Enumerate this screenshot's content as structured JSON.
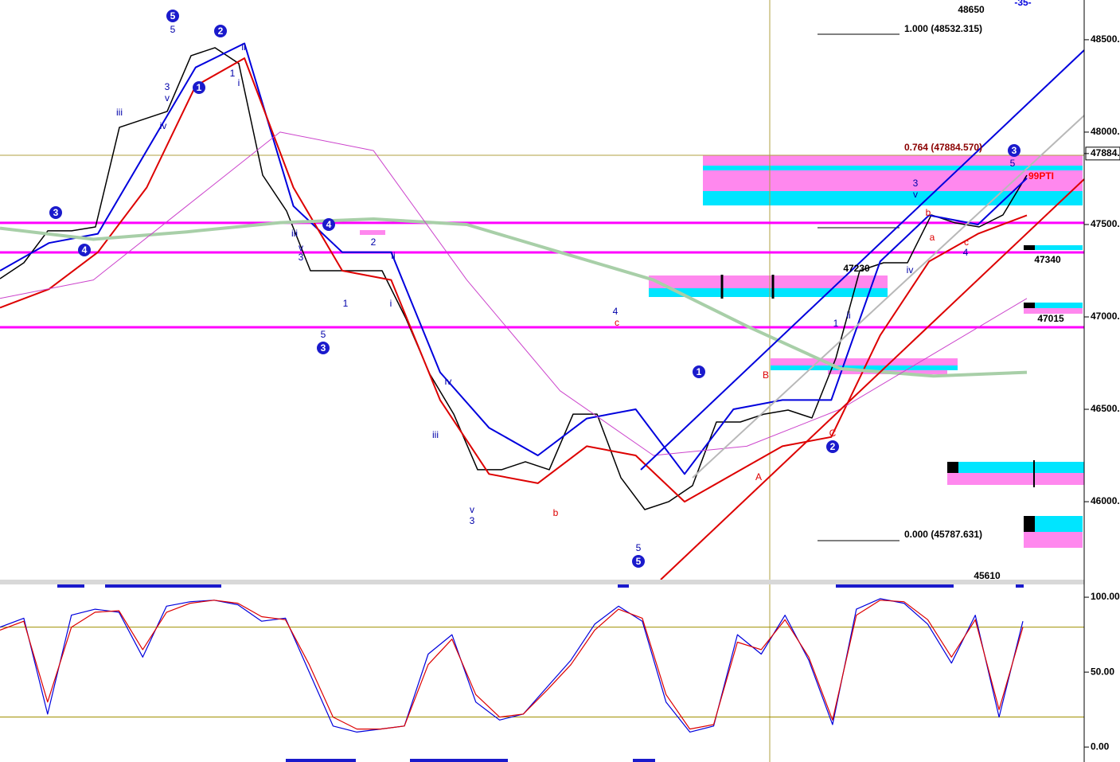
{
  "chart_data": [
    {
      "type": "line",
      "ylim": [
        45578,
        48715
      ],
      "yticks": [
        {
          "value": 48500,
          "label": "48500."
        },
        {
          "value": 48000,
          "label": "48000."
        },
        {
          "value": 47884,
          "label": "47884."
        },
        {
          "value": 47500,
          "label": "47500."
        },
        {
          "value": 47000,
          "label": "47000."
        },
        {
          "value": 46500,
          "label": "46500."
        },
        {
          "value": 46000,
          "label": "46000."
        }
      ],
      "series": [
        {
          "name": "Price",
          "color": "#000000",
          "values": [
            47207,
            47293,
            47466,
            47466,
            47487,
            48026,
            48069,
            48112,
            48414,
            48457,
            48371,
            47767,
            47573,
            47250,
            47250,
            47250,
            47250,
            46991,
            46690,
            46474,
            46173,
            46173,
            46216,
            46173,
            46474,
            46474,
            46130,
            45957,
            46000,
            46087,
            46431,
            46431,
            46474,
            46496,
            46453,
            46776,
            47250,
            47293,
            47293,
            47552,
            47509,
            47487,
            47552,
            47767
          ]
        },
        {
          "name": "Upper band",
          "color": "#0000dd",
          "values": [
            47250,
            47400,
            47450,
            47900,
            48350,
            48480,
            47600,
            47350,
            47350,
            46700,
            46400,
            46250,
            46450,
            46500,
            46150,
            46500,
            46550,
            46550,
            47300,
            47550,
            47500,
            47750
          ]
        },
        {
          "name": "Lower band",
          "color": "#dd0000",
          "values": [
            47050,
            47150,
            47350,
            47700,
            48250,
            48400,
            47700,
            47250,
            47200,
            46550,
            46150,
            46100,
            46300,
            46250,
            46000,
            46150,
            46300,
            46350,
            46900,
            47300,
            47450,
            47550
          ]
        },
        {
          "name": "Slow average",
          "color": "#a8cfa8",
          "values": [
            47480,
            47420,
            47460,
            47510,
            47530,
            47500,
            47350,
            47200,
            46950,
            46720,
            46680,
            46700
          ]
        },
        {
          "name": "Fast average",
          "color": "#cc44cc",
          "values": [
            47100,
            47200,
            47600,
            48000,
            47900,
            47200,
            46600,
            46250,
            46300,
            46500,
            46800,
            47100
          ]
        }
      ],
      "hlines": [
        47509,
        47349,
        46944
      ],
      "hline_color": "#ff00ff",
      "annotations": [
        {
          "text": "48650",
          "color": "#000000"
        },
        {
          "text": "1.000 (48532.315)",
          "color": "#000000"
        },
        {
          "text": "0.764 (47884.570)",
          "color": "#8b0000"
        },
        {
          "text": "0.000 (45787.631)",
          "color": "#000000"
        },
        {
          "text": "47340",
          "color": "#000000"
        },
        {
          "text": "47015",
          "color": "#000000"
        },
        {
          "text": "45610",
          "color": "#000000"
        },
        {
          "text": "47230",
          "color": "#000000"
        },
        {
          "text": "99PTI",
          "color": "#ff0000"
        },
        {
          "text": "-35-",
          "color": "#0000dd"
        }
      ],
      "wave_circles": [
        "5",
        "2",
        "1",
        "3",
        "4",
        "4",
        "3",
        "5",
        "1",
        "2",
        "3"
      ],
      "wave_labels": [
        {
          "text": "5",
          "color": "#0000aa"
        },
        {
          "text": "3",
          "color": "#0000aa"
        },
        {
          "text": "v",
          "color": "#0000aa"
        },
        {
          "text": "iii",
          "color": "#0000aa"
        },
        {
          "text": "iv",
          "color": "#0000aa"
        },
        {
          "text": "1",
          "color": "#0000aa"
        },
        {
          "text": "i",
          "color": "#0000aa"
        },
        {
          "text": "ii",
          "color": "#0000aa"
        },
        {
          "text": "iii",
          "color": "#0000aa"
        },
        {
          "text": "v",
          "color": "#0000aa"
        },
        {
          "text": "3",
          "color": "#0000aa"
        },
        {
          "text": "5",
          "color": "#0000aa"
        },
        {
          "text": "1",
          "color": "#0000aa"
        },
        {
          "text": "2",
          "color": "#0000aa"
        },
        {
          "text": "i",
          "color": "#0000aa"
        },
        {
          "text": "ii",
          "color": "#0000aa"
        },
        {
          "text": "iii",
          "color": "#0000aa"
        },
        {
          "text": "iv",
          "color": "#0000aa"
        },
        {
          "text": "v",
          "color": "#0000aa"
        },
        {
          "text": "3",
          "color": "#0000aa"
        },
        {
          "text": "4",
          "color": "#0000aa"
        },
        {
          "text": "5",
          "color": "#0000aa"
        },
        {
          "text": "ii",
          "color": "#0000aa"
        },
        {
          "text": "1",
          "color": "#0000aa"
        },
        {
          "text": "3",
          "color": "#0000aa"
        },
        {
          "text": "v",
          "color": "#0000aa"
        },
        {
          "text": "iv",
          "color": "#0000aa"
        },
        {
          "text": "4",
          "color": "#0000aa"
        },
        {
          "text": "5",
          "color": "#0000aa"
        },
        {
          "text": "c",
          "color": "#dd0000"
        },
        {
          "text": "b",
          "color": "#dd0000"
        },
        {
          "text": "A",
          "color": "#dd0000"
        },
        {
          "text": "B",
          "color": "#dd0000"
        },
        {
          "text": "C",
          "color": "#dd0000"
        },
        {
          "text": "a",
          "color": "#dd0000"
        },
        {
          "text": "b",
          "color": "#dd0000"
        },
        {
          "text": "c",
          "color": "#dd0000"
        }
      ]
    },
    {
      "type": "line",
      "ylim": [
        -10,
        108
      ],
      "yticks": [
        {
          "value": 100,
          "label": "100.00"
        },
        {
          "value": 50,
          "label": "50.00"
        },
        {
          "value": 0,
          "label": "0.00"
        }
      ],
      "series": [
        {
          "name": "%K",
          "color": "#0000dd",
          "values": [
            80,
            86,
            22,
            88,
            92,
            90,
            60,
            94,
            97,
            98,
            95,
            84,
            86,
            50,
            14,
            10,
            12,
            14,
            62,
            75,
            30,
            18,
            22,
            40,
            58,
            82,
            94,
            84,
            30,
            10,
            14,
            75,
            62,
            88,
            58,
            15,
            92,
            99,
            96,
            82,
            56,
            88,
            20,
            84
          ]
        },
        {
          "name": "%D",
          "color": "#dd0000",
          "values": [
            78,
            84,
            30,
            80,
            90,
            91,
            65,
            90,
            96,
            98,
            96,
            87,
            85,
            55,
            20,
            12,
            12,
            14,
            55,
            72,
            35,
            20,
            22,
            38,
            55,
            78,
            92,
            86,
            35,
            12,
            15,
            70,
            65,
            85,
            60,
            18,
            88,
            98,
            97,
            85,
            60,
            85,
            25,
            80
          ]
        }
      ],
      "hlines": [
        80,
        20
      ],
      "hline_color": "#a09000"
    }
  ]
}
